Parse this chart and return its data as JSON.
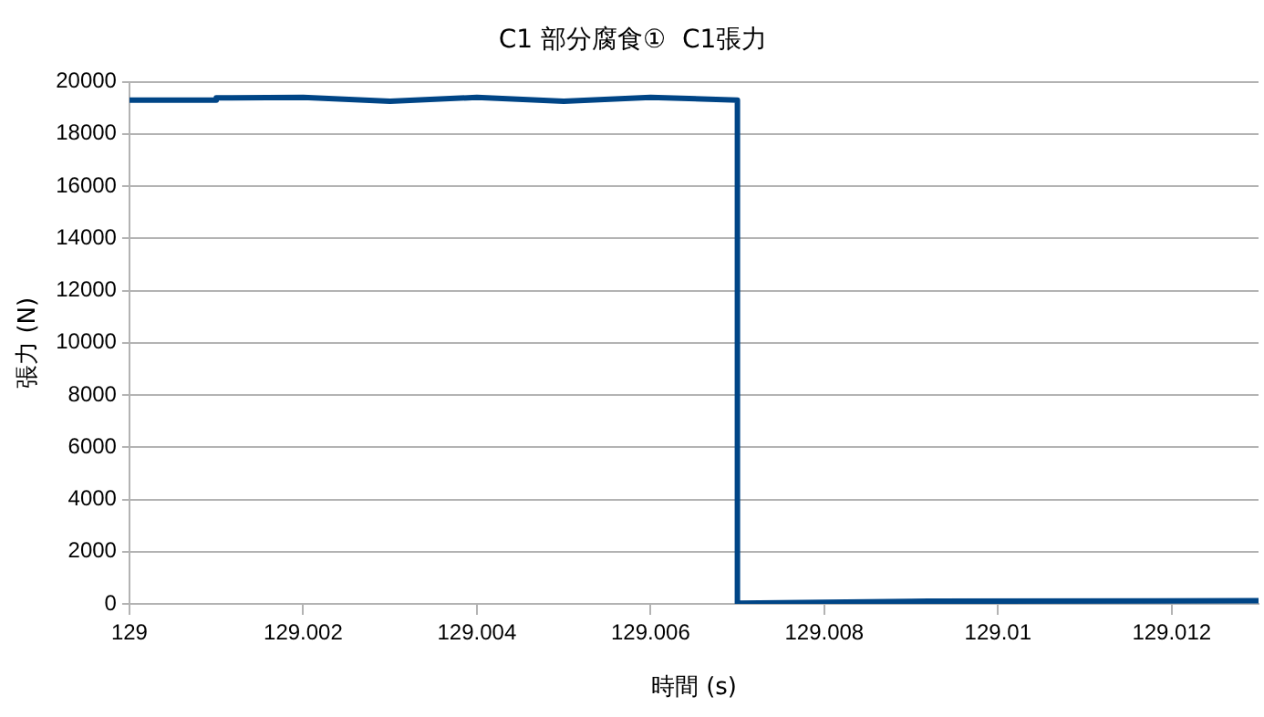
{
  "chart_data": {
    "type": "line",
    "title": "C1 部分腐食①  C1張力",
    "xlabel": "時間 (s)",
    "ylabel": "張力 (N)",
    "x": [
      129,
      129.001,
      129.001,
      129.002,
      129.003,
      129.004,
      129.005,
      129.006,
      129.007,
      129.007,
      129.009,
      129.013
    ],
    "series": [
      {
        "color": "#004586",
        "values": [
          19300,
          19300,
          19380,
          19400,
          19250,
          19400,
          19250,
          19400,
          19300,
          30,
          100,
          120
        ]
      }
    ],
    "xlim": [
      129,
      129.013
    ],
    "xticks": [
      129,
      129.002,
      129.004,
      129.006,
      129.008,
      129.01,
      129.012
    ],
    "ylim": [
      0,
      20000
    ],
    "yticks": [
      0,
      2000,
      4000,
      6000,
      8000,
      10000,
      12000,
      14000,
      16000,
      18000,
      20000
    ],
    "grid": "y",
    "marker": "none",
    "line_style": "solid"
  }
}
